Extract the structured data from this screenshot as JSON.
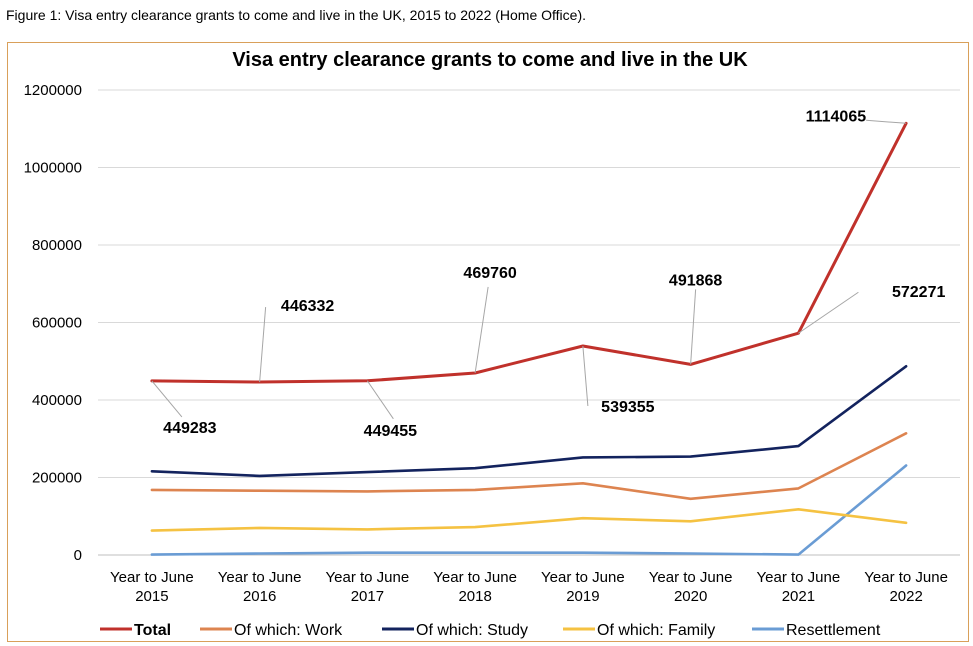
{
  "figure_caption": "Figure 1: Visa entry clearance grants to come and live in the UK, 2015 to 2022 (Home Office).",
  "chart_data": {
    "type": "line",
    "title": "Visa entry clearance grants to come and live in the UK",
    "xlabel": "",
    "ylabel": "",
    "ylim": [
      0,
      1200000
    ],
    "yticks": [
      0,
      200000,
      400000,
      600000,
      800000,
      1000000,
      1200000
    ],
    "ytick_labels": [
      "0",
      "200000",
      "400000",
      "600000",
      "800000",
      "1000000",
      "1200000"
    ],
    "grid": true,
    "legend_position": "bottom",
    "categories": [
      "Year to June 2015",
      "Year to June 2016",
      "Year to June 2017",
      "Year to June 2018",
      "Year to June 2019",
      "Year to June 2020",
      "Year to June 2021",
      "Year to June 2022"
    ],
    "category_lines": [
      [
        "Year to June",
        "2015"
      ],
      [
        "Year to June",
        "2016"
      ],
      [
        "Year to June",
        "2017"
      ],
      [
        "Year to June",
        "2018"
      ],
      [
        "Year to June",
        "2019"
      ],
      [
        "Year to June",
        "2020"
      ],
      [
        "Year to June",
        "2021"
      ],
      [
        "Year to June",
        "2022"
      ]
    ],
    "series": [
      {
        "name": "Total",
        "color": "#c0312b",
        "bold": true,
        "values": [
          449283,
          446332,
          449455,
          469760,
          539355,
          491868,
          572271,
          1114065
        ]
      },
      {
        "name": "Of which: Work",
        "color": "#dd8450",
        "bold": false,
        "values": [
          168000,
          166000,
          164000,
          168000,
          185000,
          145000,
          172000,
          314000
        ]
      },
      {
        "name": "Of which: Study",
        "color": "#13235e",
        "bold": false,
        "values": [
          216000,
          204000,
          214000,
          224000,
          252000,
          254000,
          281000,
          487000
        ]
      },
      {
        "name": "Of which: Family",
        "color": "#f5c242",
        "bold": false,
        "values": [
          63000,
          70000,
          66000,
          72000,
          95000,
          87000,
          118000,
          83000
        ]
      },
      {
        "name": "Resettlement",
        "color": "#6a9cd4",
        "bold": false,
        "values": [
          1000,
          4000,
          6000,
          6000,
          6000,
          4000,
          1000,
          231000
        ]
      }
    ],
    "annotations": [
      {
        "text": "449283",
        "series": 0,
        "point": 0
      },
      {
        "text": "446332",
        "series": 0,
        "point": 1
      },
      {
        "text": "449455",
        "series": 0,
        "point": 2
      },
      {
        "text": "469760",
        "series": 0,
        "point": 3
      },
      {
        "text": "539355",
        "series": 0,
        "point": 4
      },
      {
        "text": "491868",
        "series": 0,
        "point": 5
      },
      {
        "text": "572271",
        "series": 0,
        "point": 6
      },
      {
        "text": "1114065",
        "series": 0,
        "point": 7
      }
    ]
  }
}
